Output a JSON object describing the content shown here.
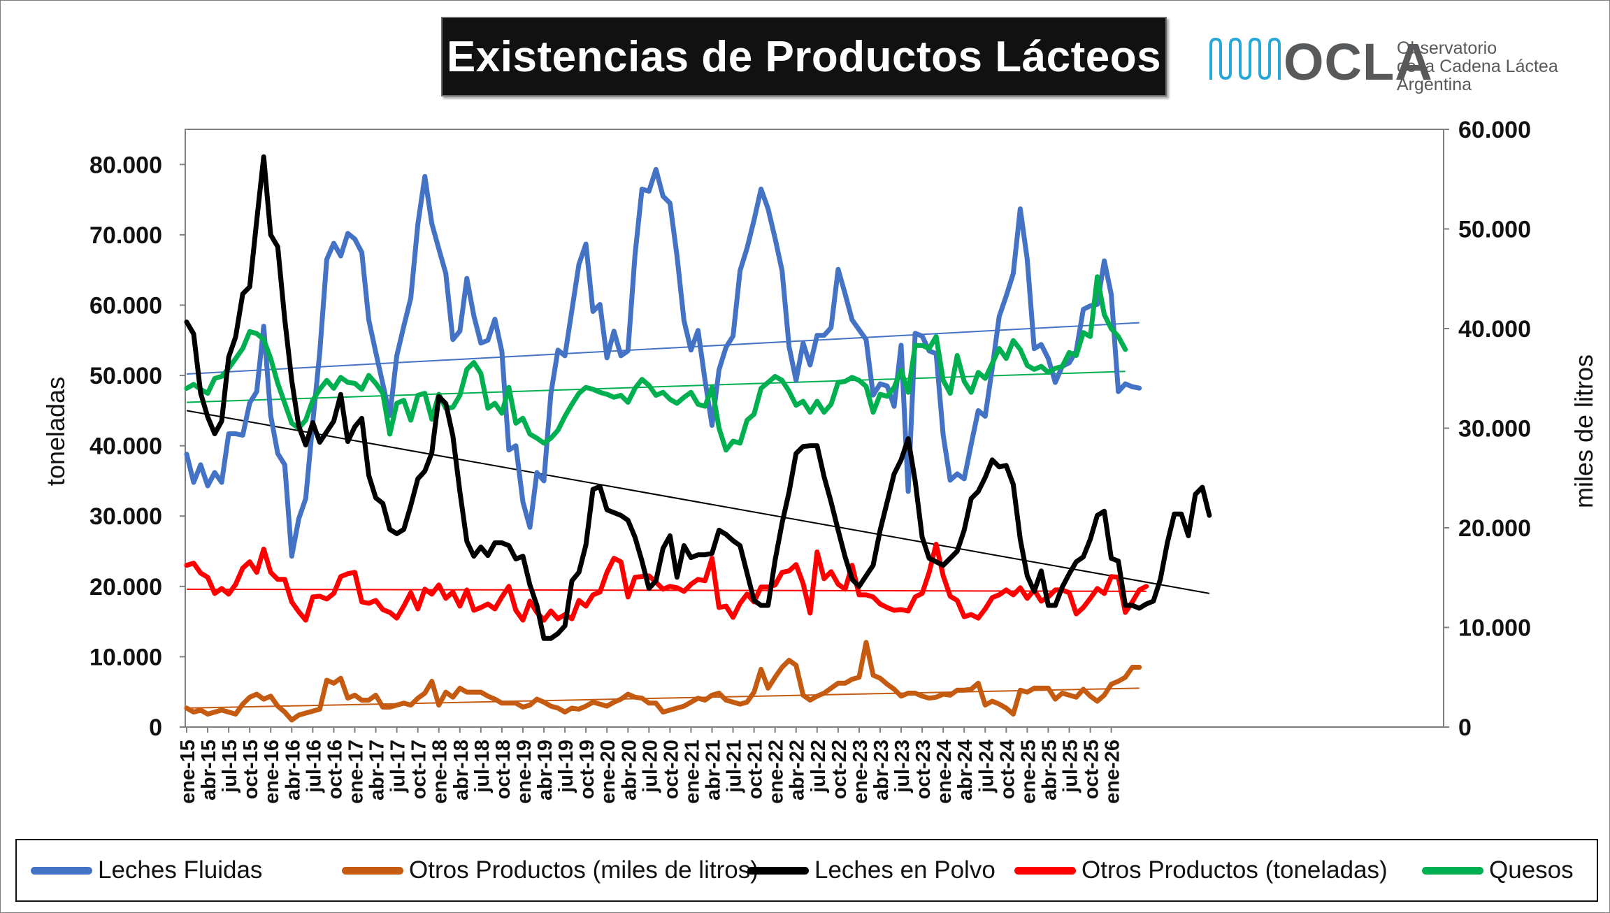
{
  "title": "Existencias de Productos Lácteos",
  "logo": {
    "brand": "OCLA",
    "line1": "Observatorio",
    "line2": "de la Cadena Láctea",
    "line3": "Argentina",
    "color": "#58595b",
    "accent": "#29a8d8",
    "icon": "milk-waves-icon"
  },
  "chart_data": {
    "type": "line",
    "title": "Existencias de Productos Lácteos",
    "ylabel_left": "toneladas",
    "ylabel_right": "miles de litros",
    "ylim_left": [
      0,
      85000
    ],
    "ylim_right": [
      0,
      60000
    ],
    "yticks_left": [
      "0",
      "10.000",
      "20.000",
      "30.000",
      "40.000",
      "50.000",
      "60.000",
      "70.000",
      "80.000"
    ],
    "yticks_right": [
      "0",
      "10.000",
      "20.000",
      "30.000",
      "40.000",
      "50.000",
      "60.000"
    ],
    "x_start": "ene-15",
    "x_tick_labels": [
      "ene-15",
      "abr-15",
      "jul-15",
      "oct-15",
      "ene-16",
      "abr-16",
      "jul-16",
      "oct-16",
      "ene-17",
      "abr-17",
      "jul-17",
      "oct-17",
      "ene-18",
      "abr-18",
      "jul-18",
      "oct-18",
      "ene-19",
      "abr-19",
      "jul-19",
      "oct-19",
      "ene-20",
      "abr-20",
      "jul-20",
      "oct-20",
      "ene-21",
      "abr-21",
      "jul-21",
      "oct-21",
      "ene-22",
      "abr-22",
      "jul-22",
      "oct-22",
      "ene-23",
      "abr-23",
      "jul-23",
      "oct-23",
      "ene-24",
      "abr-24",
      "jul-24",
      "oct-24",
      "ene-25",
      "abr-25",
      "jul-25",
      "oct-25",
      "ene-26"
    ],
    "grid": false,
    "legend_position": "bottom",
    "series": [
      {
        "name": "Leches Fluidas",
        "axis": "left",
        "color": "#4472c4",
        "trend": [
          50200,
          57500
        ],
        "values": [
          38800,
          34800,
          37300,
          34300,
          36200,
          34800,
          41700,
          41700,
          41500,
          46100,
          47700,
          57000,
          44300,
          38900,
          37300,
          24300,
          29600,
          32500,
          43300,
          53300,
          66500,
          68800,
          67000,
          70200,
          69400,
          67500,
          57900,
          53300,
          48800,
          44300,
          52800,
          57000,
          61000,
          71500,
          78300,
          71600,
          68000,
          64500,
          55100,
          56300,
          63800,
          58500,
          54600,
          55000,
          58000,
          53400,
          39400,
          40000,
          32000,
          28400,
          36200,
          35000,
          47400,
          53600,
          52800,
          59300,
          65800,
          68700,
          59100,
          60100,
          52500,
          56300,
          52800,
          53500,
          67100,
          76500,
          76200,
          79300,
          75500,
          74500,
          67000,
          57800,
          53600,
          56400,
          49300,
          42900,
          50800,
          54000,
          55600,
          64900,
          68100,
          72100,
          76500,
          73700,
          69500,
          64900,
          54100,
          49300,
          54600,
          51500,
          55700,
          55700,
          56800,
          65100,
          61600,
          57900,
          56500,
          55100,
          47200,
          48800,
          48500,
          45600,
          54300,
          33500,
          56000,
          55600,
          53500,
          53100,
          41500,
          35100,
          36000,
          35300,
          40200,
          45000,
          44200,
          51000,
          58400,
          61300,
          64500,
          73700,
          66500,
          53800,
          54400,
          52400,
          49000,
          51300,
          51800,
          53500,
          59400,
          59900,
          60100,
          66300,
          61500,
          47700,
          48800,
          48400,
          48200
        ]
      },
      {
        "name": "Otros Productos (miles de litros)",
        "axis": "right",
        "color": "#c55a11",
        "trend": [
          1900,
          3900
        ],
        "values": [
          1900,
          1500,
          1700,
          1300,
          1500,
          1700,
          1500,
          1300,
          2300,
          3000,
          3300,
          2800,
          3100,
          2100,
          1500,
          700,
          1200,
          1400,
          1600,
          1800,
          4700,
          4400,
          4900,
          2900,
          3200,
          2700,
          2700,
          3200,
          2000,
          2000,
          2200,
          2400,
          2200,
          2900,
          3400,
          4600,
          2200,
          3500,
          3000,
          3900,
          3500,
          3500,
          3500,
          3100,
          2800,
          2400,
          2400,
          2400,
          2000,
          2200,
          2800,
          2500,
          2100,
          1900,
          1500,
          1900,
          1800,
          2100,
          2500,
          2300,
          2100,
          2500,
          2800,
          3300,
          3000,
          2900,
          2400,
          2400,
          1500,
          1700,
          1900,
          2100,
          2500,
          2900,
          2700,
          3200,
          3400,
          2700,
          2500,
          2300,
          2500,
          3500,
          5800,
          3900,
          5000,
          6000,
          6700,
          6200,
          3200,
          2700,
          3100,
          3400,
          3900,
          4400,
          4400,
          4800,
          5000,
          8500,
          5200,
          4900,
          4300,
          3800,
          3100,
          3400,
          3400,
          3100,
          2900,
          3000,
          3300,
          3200,
          3700,
          3700,
          3800,
          4400,
          2200,
          2600,
          2300,
          1900,
          1300,
          3700,
          3500,
          3900,
          3900,
          3900,
          2800,
          3400,
          3200,
          3000,
          3800,
          3100,
          2600,
          3200,
          4300,
          4600,
          5000,
          6000,
          6000
        ]
      },
      {
        "name": "Leches en Polvo",
        "axis": "left",
        "color": "#000000",
        "trend": [
          45000,
          19000
        ],
        "values": [
          57600,
          55900,
          47500,
          44100,
          41700,
          43500,
          52600,
          55500,
          61600,
          62600,
          72000,
          81100,
          70000,
          68300,
          58000,
          49300,
          42800,
          40100,
          43300,
          40500,
          42000,
          43500,
          47300,
          40600,
          42700,
          43900,
          35800,
          32600,
          31800,
          28100,
          27500,
          28100,
          31500,
          35300,
          36400,
          39000,
          47000,
          46000,
          41400,
          33500,
          26400,
          24300,
          25600,
          24400,
          26200,
          26200,
          25800,
          23900,
          24300,
          20200,
          17300,
          12600,
          12600,
          13300,
          14400,
          20800,
          22000,
          25900,
          33800,
          34200,
          30900,
          30500,
          30100,
          29400,
          27000,
          23600,
          19700,
          20800,
          25400,
          27200,
          21300,
          25800,
          24100,
          24500,
          24500,
          24700,
          28000,
          27400,
          26500,
          25800,
          21900,
          18000,
          17300,
          17300,
          23700,
          29000,
          33400,
          38900,
          39900,
          40000,
          40000,
          35600,
          32000,
          28000,
          24200,
          21000,
          20000,
          21500,
          23000,
          28000,
          32000,
          36000,
          38000,
          41000,
          35000,
          27000,
          24000,
          23500,
          23000,
          24000,
          25000,
          28000,
          32500,
          33500,
          35500,
          38000,
          37000,
          37200,
          34500,
          26700,
          21500,
          19300,
          22200,
          17300,
          17300,
          19900,
          21800,
          23500,
          24200,
          26700,
          30100,
          30700,
          24000,
          23600,
          17300,
          17300,
          16900,
          17500,
          17900,
          21000,
          26200,
          30300,
          30300,
          27200,
          33100,
          34100,
          30100
        ]
      },
      {
        "name": "Otros Productos (toneladas)",
        "axis": "left",
        "color": "#ff0000",
        "trend": [
          19600,
          19300
        ],
        "values": [
          23000,
          23300,
          21900,
          21300,
          19000,
          19700,
          18900,
          20300,
          22600,
          23500,
          22000,
          25300,
          22000,
          21000,
          21000,
          17800,
          16400,
          15200,
          18500,
          18600,
          18200,
          19000,
          21400,
          21800,
          22000,
          17800,
          17600,
          18000,
          16700,
          16300,
          15500,
          17200,
          19100,
          16800,
          19600,
          18900,
          20200,
          18300,
          19200,
          17200,
          19500,
          16600,
          17000,
          17500,
          16800,
          18500,
          20000,
          16600,
          15200,
          17900,
          16300,
          15200,
          16500,
          15400,
          16000,
          15400,
          18000,
          17200,
          18800,
          19200,
          22000,
          24000,
          23500,
          18500,
          21300,
          21400,
          21500,
          20600,
          19600,
          20000,
          19800,
          19300,
          20300,
          21000,
          20800,
          24000,
          17000,
          17200,
          15600,
          17600,
          18900,
          17800,
          19900,
          19900,
          20200,
          22000,
          22200,
          23100,
          20400,
          16200,
          24900,
          21100,
          22100,
          20300,
          19600,
          23000,
          18800,
          18800,
          18500,
          17500,
          17000,
          16600,
          16700,
          16500,
          18500,
          19000,
          22000,
          26000,
          21500,
          18600,
          18000,
          15700,
          16000,
          15500,
          16800,
          18400,
          18800,
          19500,
          18800,
          19800,
          18300,
          19500,
          17900,
          18500,
          19500,
          19500,
          19100,
          16100,
          17000,
          18300,
          19700,
          19000,
          21400,
          21300,
          16300,
          17800,
          19500,
          20000
        ]
      },
      {
        "name": "Quesos",
        "axis": "right",
        "color": "#00b050",
        "trend": [
          32600,
          35700
        ],
        "values": [
          34000,
          34400,
          33900,
          33500,
          35000,
          35200,
          36000,
          37000,
          38000,
          39700,
          39500,
          38900,
          37000,
          34500,
          32500,
          30500,
          30000,
          30800,
          32800,
          33900,
          34800,
          34000,
          35100,
          34600,
          34500,
          33900,
          35300,
          34500,
          33500,
          29400,
          32500,
          32800,
          30800,
          33300,
          33500,
          30900,
          33400,
          32000,
          32100,
          33300,
          35900,
          36600,
          35500,
          32000,
          32500,
          31500,
          34100,
          30500,
          31000,
          29400,
          29000,
          28500,
          29000,
          29800,
          31200,
          32400,
          33500,
          34100,
          33900,
          33600,
          33400,
          33100,
          33300,
          32600,
          34000,
          34900,
          34300,
          33300,
          33600,
          32900,
          32500,
          33100,
          33600,
          32400,
          32200,
          34100,
          30000,
          27800,
          28700,
          28500,
          30800,
          31400,
          34000,
          34600,
          35200,
          34800,
          33700,
          32300,
          32700,
          31600,
          32700,
          31600,
          32400,
          34600,
          34700,
          35100,
          34800,
          34200,
          31600,
          33400,
          33200,
          34100,
          35800,
          33600,
          38300,
          38300,
          38000,
          39200,
          34800,
          33500,
          37300,
          34700,
          33600,
          35600,
          35000,
          36500,
          38000,
          37000,
          38800,
          37900,
          36300,
          35900,
          36200,
          35600,
          36000,
          36200,
          37600,
          37300,
          39600,
          39200,
          45200,
          41400,
          40000,
          39200,
          37900
        ]
      }
    ]
  },
  "legend": {
    "items": [
      {
        "label": "Leches Fluidas",
        "color": "#4472c4"
      },
      {
        "label": "Otros Productos (miles de litros)",
        "color": "#c55a11"
      },
      {
        "label": "Leches en Polvo",
        "color": "#000000"
      },
      {
        "label": "Otros Productos (toneladas)",
        "color": "#ff0000"
      },
      {
        "label": "Quesos",
        "color": "#00b050"
      }
    ]
  }
}
